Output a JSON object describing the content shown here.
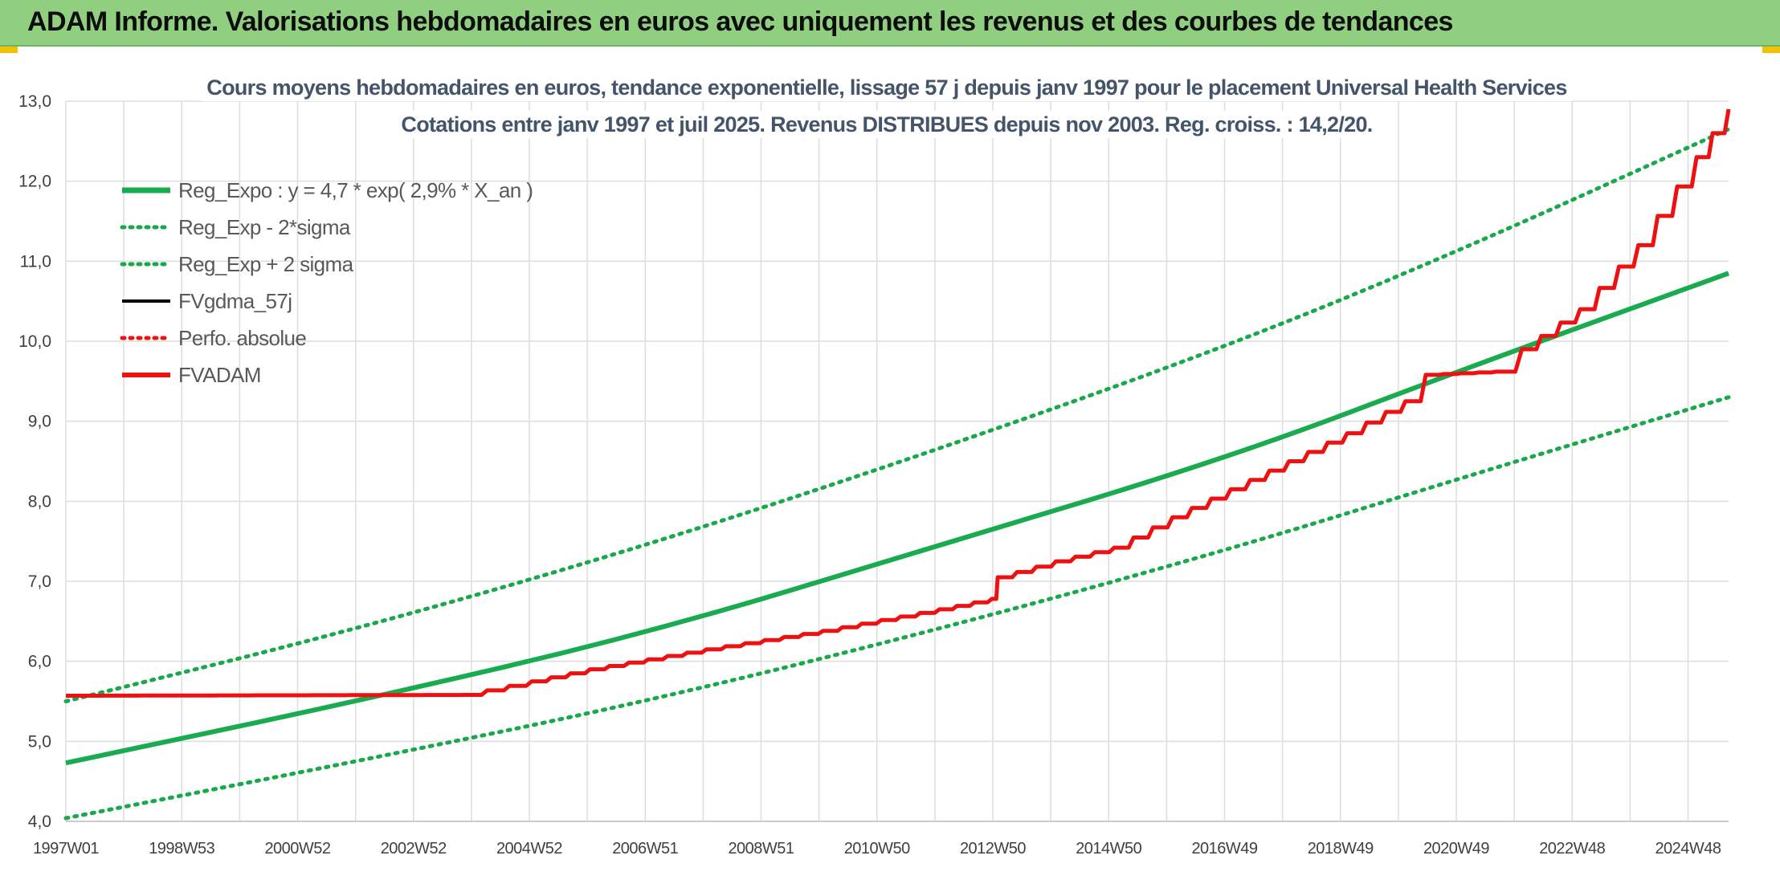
{
  "banner": {
    "title": "ADAM Informe. Valorisations hebdomadaires en euros avec uniquement les revenus et des courbes de tendances"
  },
  "colors": {
    "banner_bg": "#8fcf7f",
    "trend_green": "#1aaa4f",
    "dotted_green": "#19a84c",
    "fvgdma_black": "#000000",
    "fvadam_red": "#ee1111",
    "gridline": "#dedede"
  },
  "chart_data": {
    "type": "line",
    "title": "Cours moyens hebdomadaires en euros, tendance exponentielle, lissage 57 j depuis janv 1997 pour le placement Universal Health Services",
    "subtitle": "Cotations entre janv 1997 et juil 2025. Revenus DISTRIBUES depuis nov 2003. Reg. croiss. : 14,2/20.",
    "xlabel": "",
    "ylabel": "",
    "x_range": [
      "1997W01",
      "2025W30"
    ],
    "ylim": [
      4.0,
      13.0
    ],
    "y_ticks": [
      "4,0",
      "5,0",
      "6,0",
      "7,0",
      "8,0",
      "9,0",
      "10,0",
      "11,0",
      "12,0",
      "13,0"
    ],
    "x_tick_labels": [
      "1997W01",
      "1998W53",
      "2000W52",
      "2002W52",
      "2004W52",
      "2006W51",
      "2008W51",
      "2010W50",
      "2012W50",
      "2014W50",
      "2016W49",
      "2018W49",
      "2020W49",
      "2022W48",
      "2024W48"
    ],
    "grid": true,
    "legend_position": "top-left",
    "series": [
      {
        "name": "Reg_Expo : y = 4,7 * exp( 2,9% *  X_an )",
        "style": "solid",
        "color": "#1aaa4f",
        "points": [
          [
            1997.0,
            4.73
          ],
          [
            2002.0,
            5.5
          ],
          [
            2007.0,
            6.35
          ],
          [
            2012.0,
            7.45
          ],
          [
            2017.0,
            8.55
          ],
          [
            2021.0,
            9.65
          ],
          [
            2025.55,
            10.85
          ]
        ]
      },
      {
        "name": "Reg_Exp - 2*sigma",
        "style": "dotted",
        "color": "#19a84c",
        "points": [
          [
            1997.0,
            4.04
          ],
          [
            2002.0,
            4.75
          ],
          [
            2007.0,
            5.5
          ],
          [
            2012.0,
            6.4
          ],
          [
            2017.0,
            7.4
          ],
          [
            2021.0,
            8.3
          ],
          [
            2025.55,
            9.3
          ]
        ]
      },
      {
        "name": "Reg_Exp + 2 sigma",
        "style": "dotted",
        "color": "#19a84c",
        "points": [
          [
            1997.0,
            5.5
          ],
          [
            2002.0,
            6.4
          ],
          [
            2007.0,
            7.45
          ],
          [
            2012.0,
            8.65
          ],
          [
            2017.0,
            9.95
          ],
          [
            2021.0,
            11.15
          ],
          [
            2025.55,
            12.65
          ]
        ]
      },
      {
        "name": "FVgdma_57j",
        "style": "solid",
        "color": "#000000",
        "points": [
          [
            1997.0,
            5.57
          ],
          [
            2003.85,
            5.58
          ],
          [
            2005.0,
            5.75
          ],
          [
            2006.0,
            5.9
          ],
          [
            2008.0,
            6.15
          ],
          [
            2010.0,
            6.38
          ],
          [
            2012.0,
            6.65
          ],
          [
            2012.9,
            6.78
          ],
          [
            2013.0,
            7.05
          ],
          [
            2014.0,
            7.25
          ],
          [
            2015.0,
            7.42
          ],
          [
            2016.0,
            7.8
          ],
          [
            2017.0,
            8.15
          ],
          [
            2018.0,
            8.5
          ],
          [
            2019.0,
            8.85
          ],
          [
            2020.0,
            9.25
          ],
          [
            2020.35,
            9.58
          ],
          [
            2021.55,
            9.62
          ],
          [
            2022.0,
            9.9
          ],
          [
            2023.0,
            10.4
          ],
          [
            2024.0,
            11.2
          ],
          [
            2025.0,
            12.3
          ],
          [
            2025.55,
            12.9
          ]
        ]
      },
      {
        "name": "Perfo. absolue",
        "style": "dotted",
        "color": "#ee1111",
        "points": [
          [
            1997.0,
            5.57
          ],
          [
            2003.85,
            5.58
          ],
          [
            2005.0,
            5.75
          ],
          [
            2006.0,
            5.9
          ],
          [
            2008.0,
            6.15
          ],
          [
            2010.0,
            6.38
          ],
          [
            2012.0,
            6.65
          ],
          [
            2012.9,
            6.78
          ],
          [
            2013.0,
            7.05
          ],
          [
            2014.0,
            7.25
          ],
          [
            2015.0,
            7.42
          ],
          [
            2016.0,
            7.8
          ],
          [
            2017.0,
            8.15
          ],
          [
            2018.0,
            8.5
          ],
          [
            2019.0,
            8.85
          ],
          [
            2020.0,
            9.25
          ],
          [
            2020.35,
            9.58
          ],
          [
            2021.55,
            9.62
          ],
          [
            2022.0,
            9.9
          ],
          [
            2023.0,
            10.4
          ],
          [
            2024.0,
            11.2
          ],
          [
            2025.0,
            12.3
          ],
          [
            2025.55,
            12.9
          ]
        ]
      },
      {
        "name": "FVADAM",
        "style": "solid",
        "color": "#ee1111",
        "points": [
          [
            1997.0,
            5.57
          ],
          [
            2003.85,
            5.58
          ],
          [
            2005.0,
            5.75
          ],
          [
            2006.0,
            5.9
          ],
          [
            2008.0,
            6.15
          ],
          [
            2010.0,
            6.38
          ],
          [
            2012.0,
            6.65
          ],
          [
            2012.9,
            6.78
          ],
          [
            2013.0,
            7.05
          ],
          [
            2014.0,
            7.25
          ],
          [
            2015.0,
            7.42
          ],
          [
            2016.0,
            7.8
          ],
          [
            2017.0,
            8.15
          ],
          [
            2018.0,
            8.5
          ],
          [
            2019.0,
            8.85
          ],
          [
            2020.0,
            9.25
          ],
          [
            2020.35,
            9.58
          ],
          [
            2021.55,
            9.62
          ],
          [
            2022.0,
            9.9
          ],
          [
            2023.0,
            10.4
          ],
          [
            2024.0,
            11.2
          ],
          [
            2025.0,
            12.3
          ],
          [
            2025.55,
            12.9
          ]
        ]
      }
    ]
  }
}
